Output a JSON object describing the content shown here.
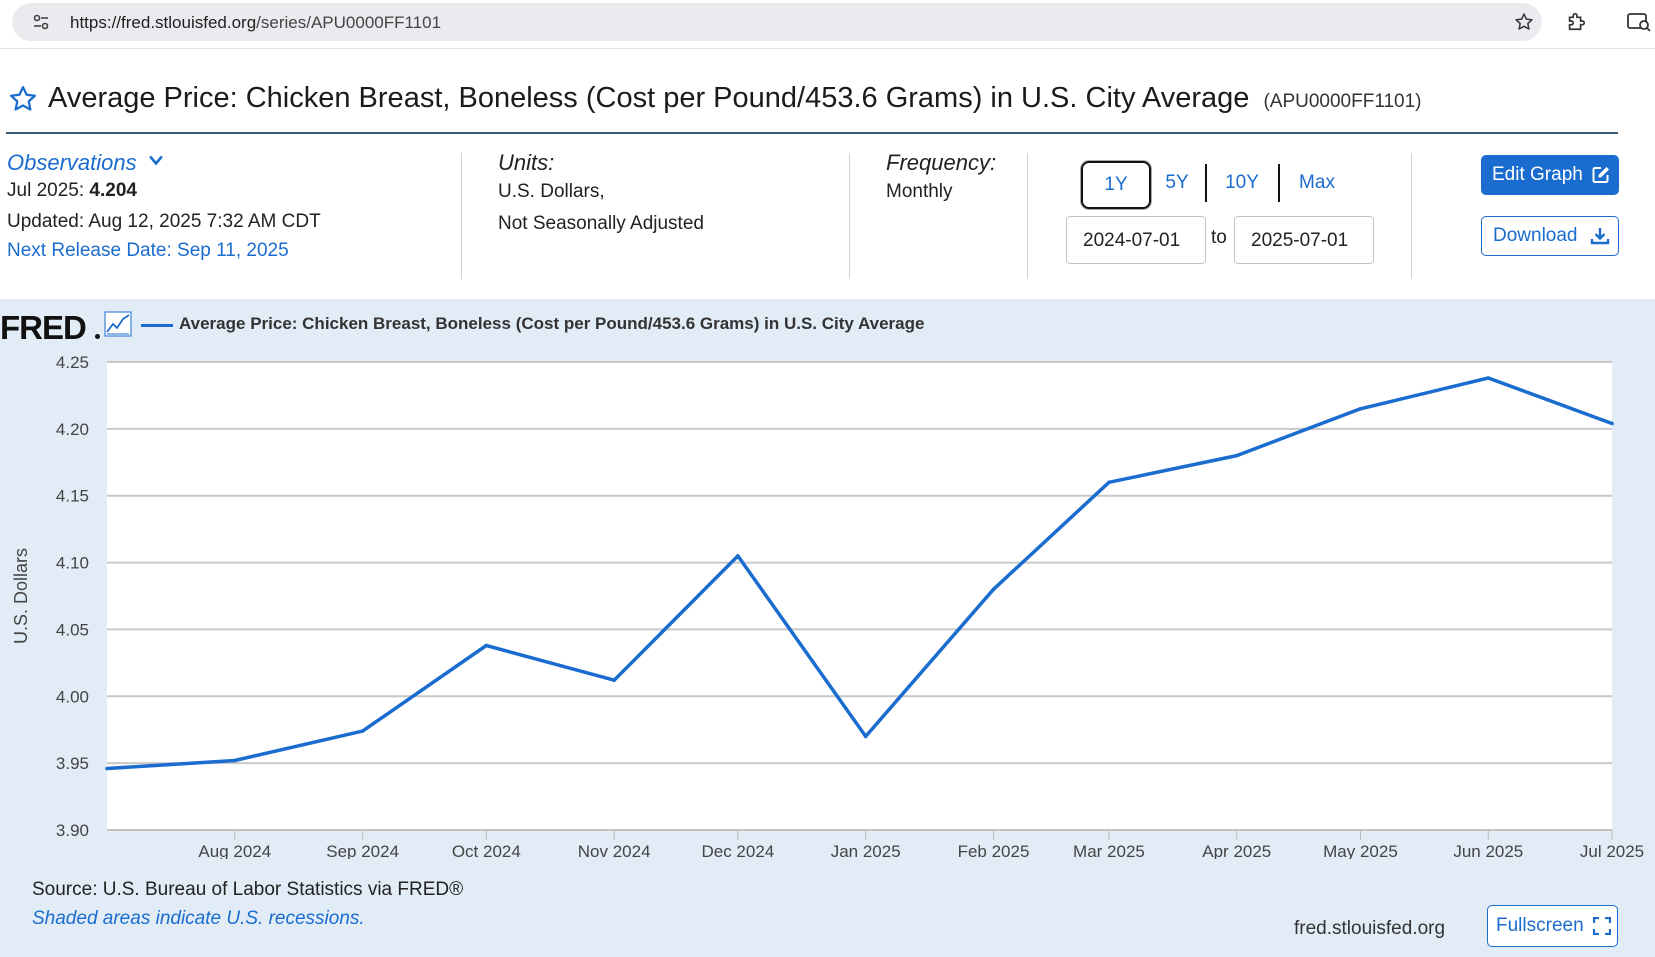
{
  "browser": {
    "url_host": "https://fred.stlouisfed.org",
    "url_path": "/series/APU0000FF1101"
  },
  "header": {
    "title": "Average Price: Chicken Breast, Boneless (Cost per Pound/453.6 Grams) in U.S. City Average",
    "series_id": "(APU0000FF1101)"
  },
  "observations": {
    "link_label": "Observations",
    "latest_label": "Jul 2025: ",
    "latest_value": "4.204",
    "updated": "Updated: Aug 12, 2025 7:32 AM CDT",
    "next_release": "Next Release Date: Sep 11, 2025"
  },
  "units": {
    "label": "Units:",
    "line1": "U.S. Dollars,",
    "line2": "Not Seasonally Adjusted"
  },
  "frequency": {
    "label": "Frequency:",
    "value": "Monthly"
  },
  "range": {
    "buttons": [
      "1Y",
      "5Y",
      "10Y",
      "Max"
    ],
    "active": "1Y",
    "start": "2024-07-01",
    "to_label": "to",
    "end": "2025-07-01"
  },
  "actions": {
    "edit_label": "Edit Graph",
    "download_label": "Download",
    "fullscreen_label": "Fullscreen"
  },
  "chart_panel": {
    "logo": "FRED",
    "legend_label": "Average Price: Chicken Breast, Boneless (Cost per Pound/453.6 Grams) in U.S. City Average",
    "source": "Source: U.S. Bureau of Labor Statistics via FRED®",
    "recession_note": "Shaded areas indicate U.S. recessions.",
    "site": "fred.stlouisfed.org"
  },
  "colors": {
    "accent": "#1a6ccf",
    "panel_bg": "#e1ecf7",
    "line": "#1a6ccf"
  },
  "chart_data": {
    "type": "line",
    "x": [
      "2024-07-01",
      "2024-08-01",
      "2024-09-01",
      "2024-10-01",
      "2024-11-01",
      "2024-12-01",
      "2025-01-01",
      "2025-02-01",
      "2025-03-01",
      "2025-04-01",
      "2025-05-01",
      "2025-06-01",
      "2025-07-01"
    ],
    "x_tick_labels": [
      "Aug 2024",
      "Sep 2024",
      "Oct 2024",
      "Nov 2024",
      "Dec 2024",
      "Jan 2025",
      "Feb 2025",
      "Mar 2025",
      "Apr 2025",
      "May 2025",
      "Jun 2025",
      "Jul 2025"
    ],
    "series": [
      {
        "name": "Average Price: Chicken Breast, Boneless (Cost per Pound/453.6 Grams) in U.S. City Average",
        "values": [
          3.946,
          3.952,
          3.974,
          4.038,
          4.012,
          4.105,
          3.97,
          4.08,
          4.16,
          4.18,
          4.215,
          4.238,
          4.204
        ]
      }
    ],
    "ylabel": "U.S. Dollars",
    "xlabel": "",
    "ylim": [
      3.9,
      4.25
    ],
    "y_ticks": [
      "3.90",
      "3.95",
      "4.00",
      "4.05",
      "4.10",
      "4.15",
      "4.20",
      "4.25"
    ],
    "grid": "horizontal",
    "legend": "top-left"
  }
}
